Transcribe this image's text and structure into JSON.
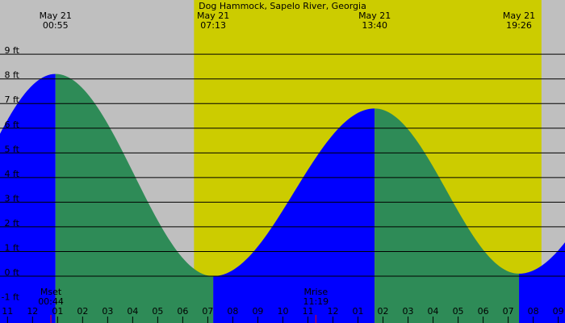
{
  "chart_data": {
    "type": "area",
    "title": "Dog Hammock, Sapelo River, Georgia",
    "ylabel_unit": "ft",
    "ylim": [
      -1.9,
      11.2
    ],
    "y_ticks": [
      {
        "value": 9,
        "label": "9 ft"
      },
      {
        "value": 8,
        "label": "8 ft"
      },
      {
        "value": 7,
        "label": "7 ft"
      },
      {
        "value": 6,
        "label": "6 ft"
      },
      {
        "value": 5,
        "label": "5 ft"
      },
      {
        "value": 4,
        "label": "4 ft"
      },
      {
        "value": 3,
        "label": "3 ft"
      },
      {
        "value": 2,
        "label": "2 ft"
      },
      {
        "value": 1,
        "label": "1 ft"
      },
      {
        "value": 0,
        "label": "0 ft"
      },
      {
        "value": -1,
        "label": "-1 ft"
      }
    ],
    "x_range_hours": [
      -1.3,
      21.27
    ],
    "x_ticks": [
      {
        "hour": -1,
        "label": "11"
      },
      {
        "hour": 0,
        "label": "12"
      },
      {
        "hour": 1,
        "label": "01"
      },
      {
        "hour": 2,
        "label": "02"
      },
      {
        "hour": 3,
        "label": "03"
      },
      {
        "hour": 4,
        "label": "04"
      },
      {
        "hour": 5,
        "label": "05"
      },
      {
        "hour": 6,
        "label": "06"
      },
      {
        "hour": 7,
        "label": "07"
      },
      {
        "hour": 8,
        "label": "08"
      },
      {
        "hour": 9,
        "label": "09"
      },
      {
        "hour": 10,
        "label": "10"
      },
      {
        "hour": 11,
        "label": "11"
      },
      {
        "hour": 12,
        "label": "12"
      },
      {
        "hour": 13,
        "label": "01"
      },
      {
        "hour": 14,
        "label": "02"
      },
      {
        "hour": 15,
        "label": "03"
      },
      {
        "hour": 16,
        "label": "04"
      },
      {
        "hour": 17,
        "label": "05"
      },
      {
        "hour": 18,
        "label": "06"
      },
      {
        "hour": 19,
        "label": "07"
      },
      {
        "hour": 20,
        "label": "08"
      },
      {
        "hour": 21,
        "label": "09"
      }
    ],
    "daylight": {
      "start_hour": 6.45,
      "end_hour": 20.33
    },
    "tide_extremes": [
      {
        "date": "May 21",
        "time": "00:55",
        "hour": 0.917,
        "height": 8.2,
        "kind": "high"
      },
      {
        "date": "May 21",
        "time": "07:13",
        "hour": 7.217,
        "height": 0.0,
        "kind": "low"
      },
      {
        "date": "May 21",
        "time": "13:40",
        "hour": 13.667,
        "height": 6.8,
        "kind": "high"
      },
      {
        "date": "May 21",
        "time": "19:26",
        "hour": 19.433,
        "height": 0.1,
        "kind": "low"
      }
    ],
    "curve_edges": [
      {
        "hour": -1.3,
        "height": 7.0
      },
      {
        "hour": 21.27,
        "height": 2.4
      }
    ],
    "moon_events": [
      {
        "label": "Mset",
        "time": "00:44",
        "hour": 0.733
      },
      {
        "label": "Mrise",
        "time": "11:19",
        "hour": 11.317
      }
    ],
    "colors": {
      "night_bg": "#bfbfbf",
      "day_bg": "#cccc00",
      "rising_tide": "#0000ff",
      "falling_tide": "#2e8b57",
      "gridline": "#000000",
      "moon_marker": "#ff0000"
    }
  }
}
